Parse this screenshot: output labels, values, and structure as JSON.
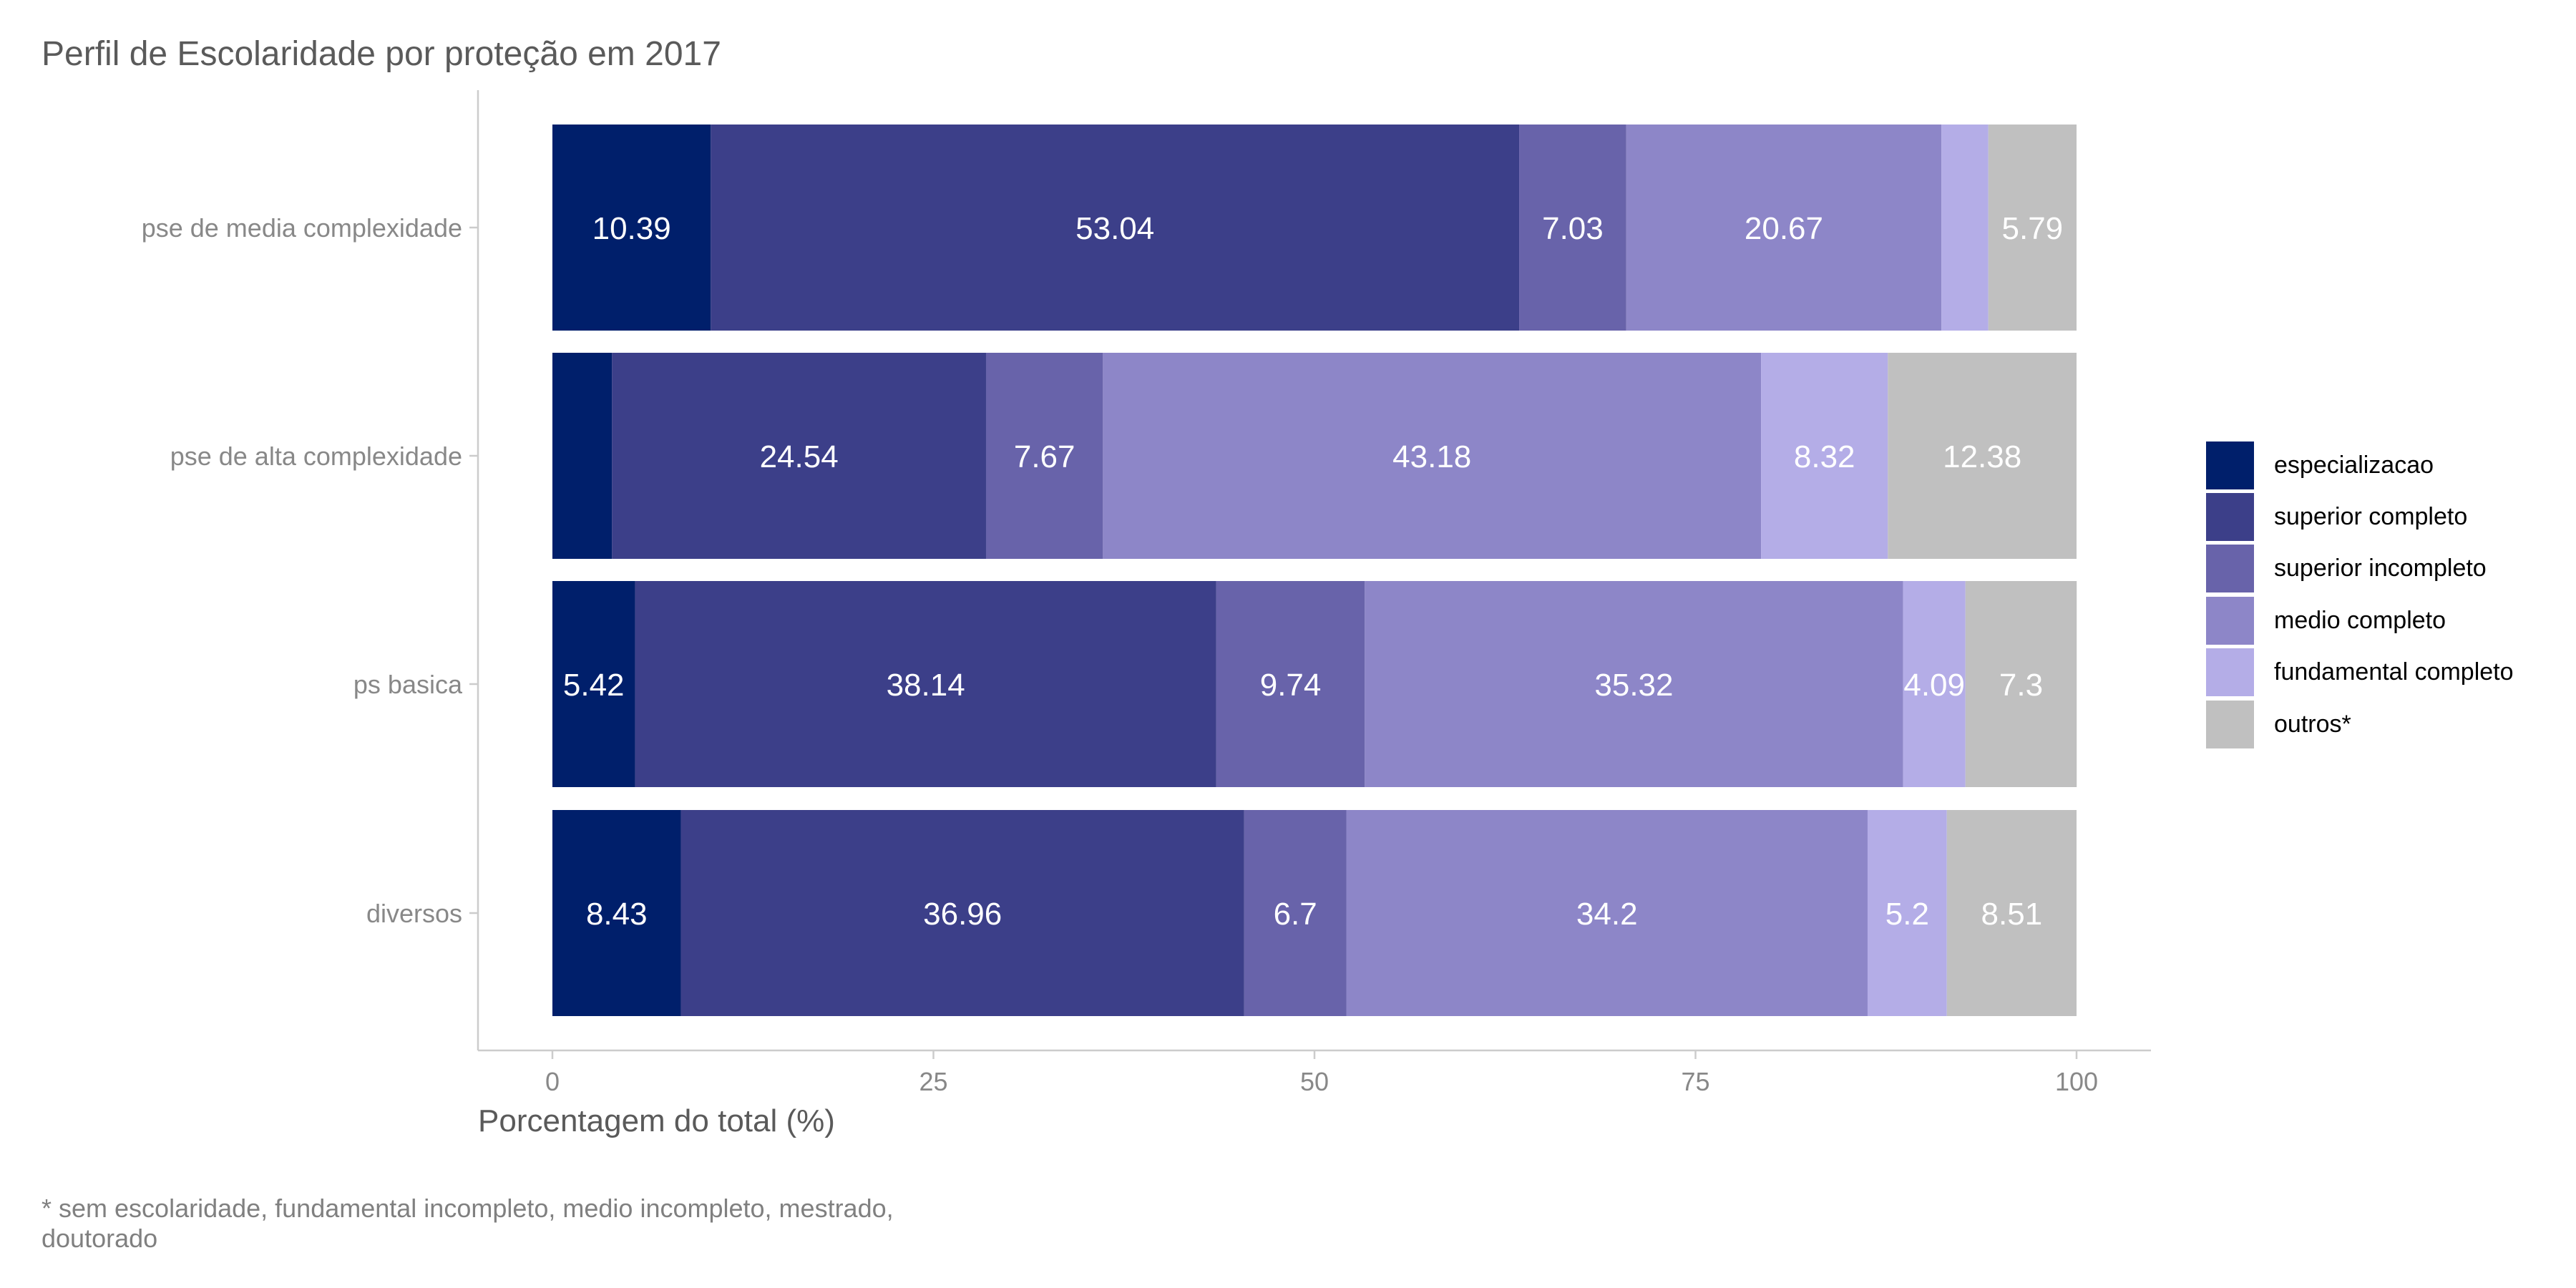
{
  "chart_data": {
    "type": "bar",
    "orientation": "horizontal",
    "stacked": true,
    "title": "Perfil de Escolaridade por proteção em 2017",
    "xlabel": "Porcentagem do total (%)",
    "ylabel": "",
    "xlim": [
      0,
      100
    ],
    "x_ticks": [
      "0",
      "25",
      "50",
      "75",
      "100"
    ],
    "categories": [
      "pse de media complexidade",
      "pse de alta complexidade",
      "ps basica",
      "diversos"
    ],
    "series": [
      {
        "name": "especializacao",
        "color": "#001f6b",
        "values": [
          10.39,
          3.91,
          5.42,
          8.43
        ],
        "labels": [
          "10.39",
          "",
          "5.42",
          "8.43"
        ]
      },
      {
        "name": "superior completo",
        "color": "#3c3f89",
        "values": [
          53.04,
          24.54,
          38.14,
          36.96
        ],
        "labels": [
          "53.04",
          "24.54",
          "38.14",
          "36.96"
        ]
      },
      {
        "name": "superior incompleto",
        "color": "#6863aa",
        "values": [
          7.03,
          7.67,
          9.74,
          6.7
        ],
        "labels": [
          "7.03",
          "7.67",
          "9.74",
          "6.7"
        ]
      },
      {
        "name": "medio completo",
        "color": "#8d86c8",
        "values": [
          20.67,
          43.18,
          35.32,
          34.2
        ],
        "labels": [
          "20.67",
          "43.18",
          "35.32",
          "34.2"
        ]
      },
      {
        "name": "fundamental completo",
        "color": "#b4ade7",
        "values": [
          3.08,
          8.32,
          4.09,
          5.2
        ],
        "labels": [
          "",
          "8.32",
          "4.09",
          "5.2"
        ]
      },
      {
        "name": "outros*",
        "color": "#c0c0c0",
        "values": [
          5.79,
          12.38,
          7.3,
          8.51
        ],
        "labels": [
          "5.79",
          "12.38",
          "7.3",
          "8.51"
        ]
      }
    ],
    "grid": false,
    "legend_position": "right",
    "footnote": "* sem escolaridade, fundamental incompleto, medio incompleto, mestrado, doutorado"
  }
}
